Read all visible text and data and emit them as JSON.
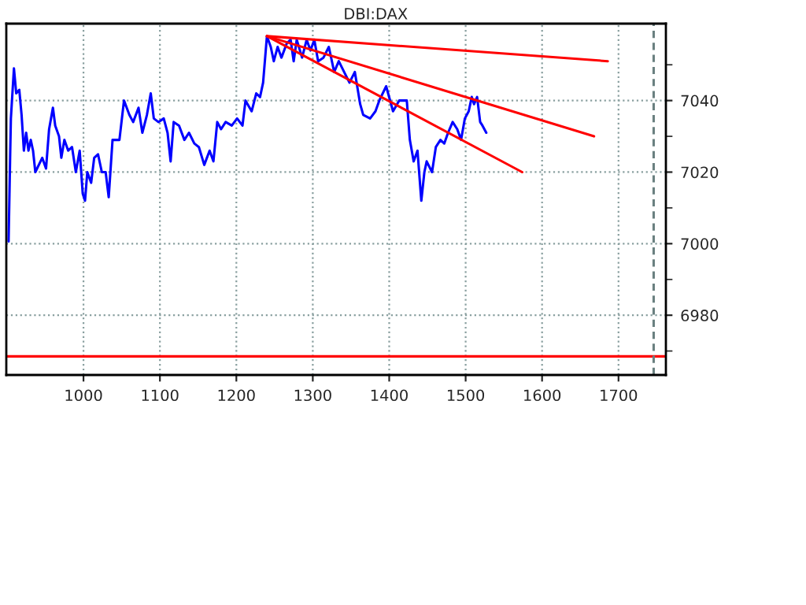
{
  "chart_data": {
    "type": "line",
    "title": "DBI:DAX",
    "xlim": [
      899,
      1762
    ],
    "xticks": [
      1000,
      1100,
      1200,
      1300,
      1400,
      1500,
      1600,
      1700
    ],
    "ylim": [
      6963.3,
      7061.5
    ],
    "yticks": [
      {
        "value": 6970,
        "label": null
      },
      6980,
      {
        "value": 6990,
        "label": null
      },
      7000,
      {
        "value": 7010,
        "label": null
      },
      7020,
      {
        "value": 7030,
        "label": null
      },
      7040,
      {
        "value": 7050,
        "label": null
      }
    ],
    "grid": true,
    "series": [
      {
        "color": "#0000ff",
        "x": [
          902,
          904,
          905,
          909,
          912,
          916,
          919,
          922,
          925,
          928,
          931,
          934,
          937,
          946,
          951,
          955,
          960,
          963,
          968,
          971,
          975,
          980,
          985,
          990,
          995,
          999,
          1002,
          1005,
          1010,
          1014,
          1019,
          1024,
          1029,
          1033,
          1038,
          1047,
          1053,
          1060,
          1065,
          1072,
          1077,
          1083,
          1088,
          1092,
          1098,
          1105,
          1110,
          1114,
          1118,
          1125,
          1132,
          1138,
          1145,
          1151,
          1158,
          1165,
          1170,
          1175,
          1180,
          1186,
          1194,
          1201,
          1208,
          1212,
          1220,
          1226,
          1231,
          1235,
          1240,
          1245,
          1249,
          1254,
          1259,
          1266,
          1271,
          1275,
          1279,
          1286,
          1292,
          1297,
          1302,
          1307,
          1314,
          1321,
          1328,
          1334,
          1341,
          1348,
          1355,
          1362,
          1366,
          1375,
          1382,
          1387,
          1396,
          1405,
          1413,
          1423,
          1427,
          1432,
          1437,
          1442,
          1446,
          1449,
          1456,
          1461,
          1467,
          1472,
          1477,
          1483,
          1489,
          1494,
          1499,
          1504,
          1508,
          1511,
          1515,
          1519,
          1522,
          1527
        ],
        "values": [
          7000.6,
          7024,
          7035,
          7049,
          7042,
          7043,
          7036,
          7026,
          7031,
          7026,
          7029,
          7026,
          7020,
          7024,
          7021,
          7032,
          7038,
          7033,
          7030,
          7024,
          7029,
          7026,
          7027,
          7020,
          7026,
          7014,
          7012,
          7020,
          7017,
          7024,
          7025,
          7020,
          7020,
          7013,
          7029,
          7029,
          7040,
          7036,
          7034,
          7038,
          7031,
          7036,
          7042,
          7035,
          7034,
          7035,
          7031,
          7023,
          7034,
          7033,
          7029,
          7031,
          7028,
          7027,
          7022,
          7026,
          7023,
          7034,
          7032,
          7034,
          7033,
          7035,
          7033,
          7040,
          7037,
          7042,
          7041,
          7045,
          7058,
          7055,
          7051,
          7055,
          7052,
          7056,
          7057,
          7051,
          7057,
          7052,
          7057,
          7054,
          7057,
          7051,
          7052,
          7055,
          7048,
          7051,
          7048,
          7045,
          7048,
          7039,
          7036,
          7035,
          7037,
          7040,
          7044,
          7037,
          7040,
          7040,
          7029,
          7023,
          7026,
          7012,
          7020,
          7023,
          7020,
          7027,
          7029,
          7028,
          7031,
          7034,
          7032,
          7029,
          7035,
          7037,
          7041,
          7039,
          7041,
          7034,
          7033,
          7031
        ]
      },
      {
        "color": "#ff0000",
        "x": [
          1240,
          1686
        ],
        "values": [
          7058,
          7051
        ]
      },
      {
        "color": "#ff0000",
        "x": [
          1240,
          1668
        ],
        "values": [
          7058,
          7030
        ]
      },
      {
        "color": "#ff0000",
        "x": [
          1240,
          1574
        ],
        "values": [
          7058,
          7020
        ]
      }
    ],
    "ref_lines": [
      {
        "axis": "y",
        "value": 6968.5,
        "color": "#ff0000",
        "line_style": "solid"
      },
      {
        "axis": "x",
        "value": 1746,
        "color": "#6a8080",
        "line_style": "dashed"
      }
    ]
  }
}
